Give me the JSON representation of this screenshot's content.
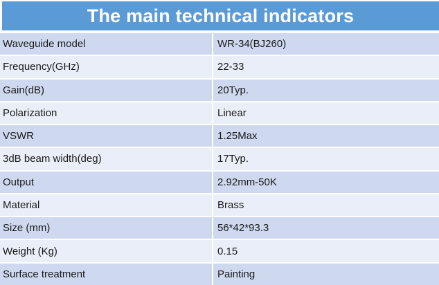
{
  "title": "The main technical indicators",
  "colors": {
    "header_bg": "#5b9bd5",
    "header_text": "#ffffff",
    "row_dark": "#ced9f0",
    "row_light": "#e9eef9",
    "row_text": "#1a1a1a",
    "divider": "#ffffff"
  },
  "table": {
    "rows": [
      {
        "label": "Waveguide model",
        "value": "WR-34(BJ260)"
      },
      {
        "label": "Frequency(GHz)",
        "value": "22-33"
      },
      {
        "label": "Gain(dB)",
        "value": "20Typ."
      },
      {
        "label": "Polarization",
        "value": "Linear"
      },
      {
        "label": "VSWR",
        "value": "1.25Max"
      },
      {
        "label": "3dB beam width(deg)",
        "value": "17Typ."
      },
      {
        "label": "Output",
        "value": "2.92mm-50K"
      },
      {
        "label": "Material",
        "value": "Brass"
      },
      {
        "label": "Size (mm)",
        "value": "56*42*93.3"
      },
      {
        "label": "Weight (Kg)",
        "value": "0.15"
      },
      {
        "label": "Surface treatment",
        "value": "Painting"
      }
    ]
  }
}
